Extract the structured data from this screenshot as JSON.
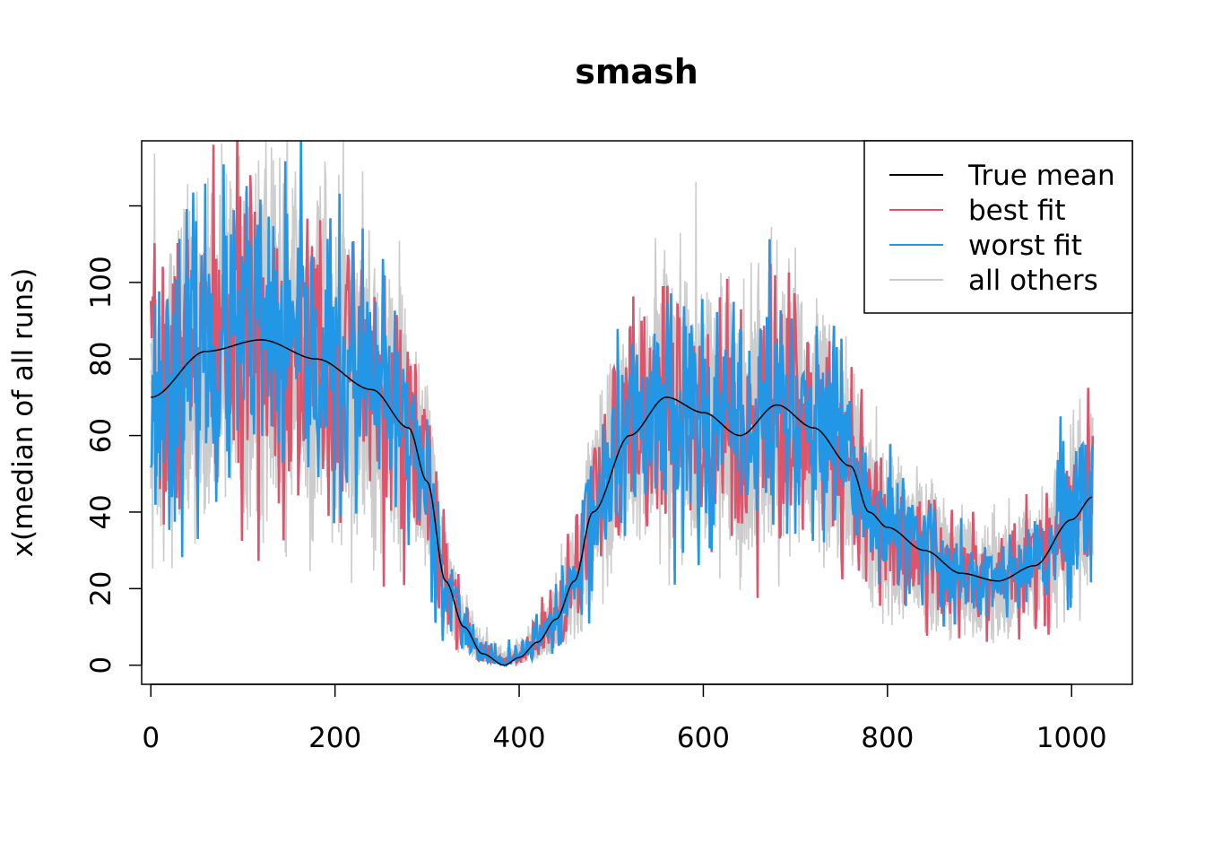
{
  "chart_data": {
    "type": "line",
    "title": "smash",
    "xlabel": "",
    "ylabel": "x(median of all runs)",
    "xlim": [
      -10,
      1066
    ],
    "ylim": [
      -5,
      137
    ],
    "x_ticks": [
      0,
      200,
      400,
      600,
      800,
      1000
    ],
    "y_ticks": [
      0,
      20,
      40,
      60,
      80,
      100,
      120
    ],
    "y_tick_labels": [
      "0",
      "20",
      "40",
      "60",
      "80",
      "100",
      ""
    ],
    "n_points": 1024,
    "legend": {
      "position": "top-right",
      "entries": [
        {
          "name": "True mean",
          "color": "#000000"
        },
        {
          "name": "best fit",
          "color": "#df536b"
        },
        {
          "name": "worst fit",
          "color": "#2297e6"
        },
        {
          "name": "all others",
          "color": "#cccccc"
        }
      ]
    },
    "series": [
      {
        "name": "True mean",
        "color": "#000000",
        "description": "smooth mean curve, min near x=384"
      },
      {
        "name": "best fit",
        "color": "#df536b"
      },
      {
        "name": "worst fit",
        "color": "#2297e6"
      },
      {
        "name": "all others",
        "color": "#cccccc"
      }
    ],
    "mean_profile_knots": {
      "x": [
        0,
        60,
        120,
        180,
        240,
        280,
        300,
        320,
        340,
        360,
        384,
        400,
        420,
        440,
        460,
        480,
        520,
        560,
        600,
        640,
        680,
        720,
        760,
        780,
        800,
        840,
        880,
        920,
        960,
        1000,
        1023
      ],
      "y": [
        70,
        82,
        85,
        80,
        72,
        62,
        48,
        22,
        10,
        3,
        0,
        2,
        6,
        12,
        22,
        40,
        60,
        70,
        66,
        60,
        68,
        62,
        52,
        40,
        36,
        30,
        24,
        22,
        26,
        38,
        44
      ]
    }
  }
}
